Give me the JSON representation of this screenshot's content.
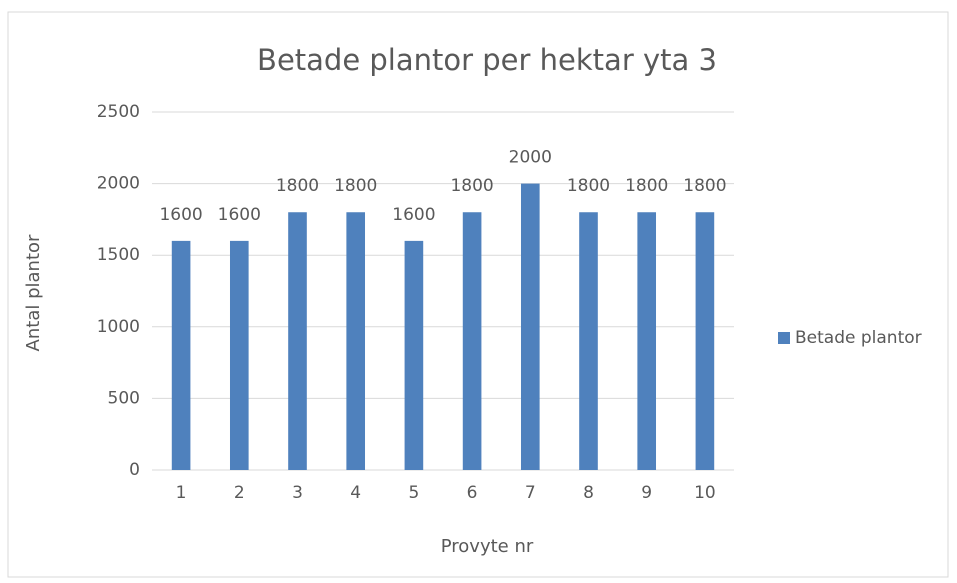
{
  "chart_data": {
    "type": "bar",
    "title": "Betade plantor per hektar yta 3",
    "x_label": "Provyte nr",
    "y_label": "Antal plantor",
    "categories": [
      "1",
      "2",
      "3",
      "4",
      "5",
      "6",
      "7",
      "8",
      "9",
      "10"
    ],
    "series": [
      {
        "name": "Betade plantor",
        "color": "#4f81bd",
        "values": [
          1600,
          1600,
          1800,
          1800,
          1600,
          1800,
          2000,
          1800,
          1800,
          1800
        ]
      }
    ],
    "ylim": [
      0,
      2500
    ],
    "yticks": [
      0,
      500,
      1000,
      1500,
      2000,
      2500
    ],
    "grid": true,
    "legend": "right",
    "data_labels": true
  }
}
